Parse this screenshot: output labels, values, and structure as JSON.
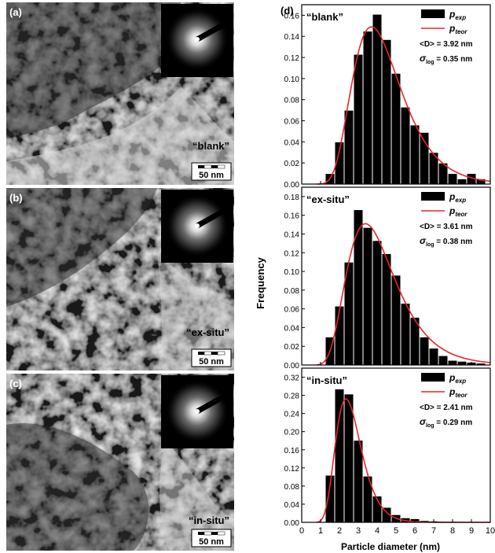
{
  "figure": {
    "panel_labels": [
      "(a)",
      "(b)",
      "(c)",
      "(d)"
    ],
    "scale_bar_label": "50 nm"
  },
  "tem_panels": [
    {
      "panel": "(a)",
      "sample": "“blank”"
    },
    {
      "panel": "(b)",
      "sample": "“ex-situ”"
    },
    {
      "panel": "(c)",
      "sample": "“in-situ”"
    }
  ],
  "colors": {
    "bars": "#000000",
    "fit_line": "#e8262b"
  },
  "chart_data": [
    {
      "type": "bar",
      "title": "“blank”",
      "ylabel": "Frequency",
      "xlabel": "",
      "xlim": [
        0,
        10
      ],
      "ylim": [
        0,
        0.17
      ],
      "yticks": [
        "0.00",
        "0.02",
        "0.04",
        "0.06",
        "0.08",
        "0.10",
        "0.12",
        "0.14",
        "0.16"
      ],
      "bin_width": 0.5,
      "x": [
        1.5,
        2.0,
        2.5,
        3.0,
        3.5,
        4.0,
        4.5,
        5.0,
        5.5,
        6.0,
        6.5,
        7.0,
        7.5,
        8.0,
        8.5,
        9.0,
        9.5
      ],
      "values": [
        0.01,
        0.04,
        0.07,
        0.123,
        0.145,
        0.161,
        0.137,
        0.105,
        0.073,
        0.056,
        0.049,
        0.03,
        0.02,
        0.01,
        0.005,
        0.01,
        0.005
      ],
      "series": [
        {
          "legend_text": "exp",
          "kind": "bar"
        },
        {
          "legend_text": "teor",
          "kind": "line"
        }
      ],
      "annotations": [
        "<D> = 3.92 nm",
        "log = 0.35 nm"
      ],
      "fit": {
        "median": 3.7,
        "sigma": 0.35,
        "peak": 0.149
      }
    },
    {
      "type": "bar",
      "title": "“ex-situ”",
      "ylabel": "Frequency",
      "xlabel": "",
      "xlim": [
        0,
        10
      ],
      "ylim": [
        0,
        0.19
      ],
      "yticks": [
        "0.00",
        "0.02",
        "0.04",
        "0.06",
        "0.08",
        "0.10",
        "0.12",
        "0.14",
        "0.16",
        "0.18"
      ],
      "bin_width": 0.5,
      "x": [
        1.5,
        2.0,
        2.5,
        3.0,
        3.5,
        4.0,
        4.5,
        5.0,
        5.5,
        6.0,
        6.5,
        7.0,
        7.5,
        8.0,
        8.5,
        9.0,
        9.5
      ],
      "values": [
        0.03,
        0.063,
        0.11,
        0.166,
        0.147,
        0.133,
        0.119,
        0.096,
        0.066,
        0.051,
        0.03,
        0.018,
        0.01,
        0.005,
        0.004,
        0.003,
        0.002
      ],
      "series": [
        {
          "legend_text": "exp",
          "kind": "bar"
        },
        {
          "legend_text": "teor",
          "kind": "line"
        }
      ],
      "annotations": [
        "<D> = 3.61 nm",
        "log = 0.38 nm"
      ],
      "fit": {
        "median": 3.38,
        "sigma": 0.38,
        "peak": 0.151
      }
    },
    {
      "type": "bar",
      "title": "“in-situ”",
      "ylabel": "Frequency",
      "xlabel": "Particle diameter (nm)",
      "xlim": [
        0,
        10
      ],
      "ylim": [
        0,
        0.34
      ],
      "xticks": [
        "0",
        "1",
        "2",
        "3",
        "4",
        "5",
        "6",
        "7",
        "8",
        "9",
        "10"
      ],
      "yticks": [
        "0.00",
        "0.04",
        "0.08",
        "0.12",
        "0.16",
        "0.20",
        "0.24",
        "0.28",
        "0.32"
      ],
      "bin_width": 0.5,
      "x": [
        1.5,
        2.0,
        2.5,
        3.0,
        3.5,
        4.0,
        4.5,
        5.0,
        5.5,
        6.0,
        6.5,
        7.0,
        7.5,
        8.0
      ],
      "values": [
        0.104,
        0.294,
        0.283,
        0.181,
        0.102,
        0.058,
        0.033,
        0.017,
        0.01,
        0.008,
        0.004,
        0.003,
        0.002,
        0.002
      ],
      "series": [
        {
          "legend_text": "exp",
          "kind": "bar"
        },
        {
          "legend_text": "teor",
          "kind": "line"
        }
      ],
      "annotations": [
        "<D> = 2.41 nm",
        "log = 0.29 nm"
      ],
      "fit": {
        "median": 2.35,
        "sigma": 0.29,
        "peak": 0.272
      }
    }
  ]
}
